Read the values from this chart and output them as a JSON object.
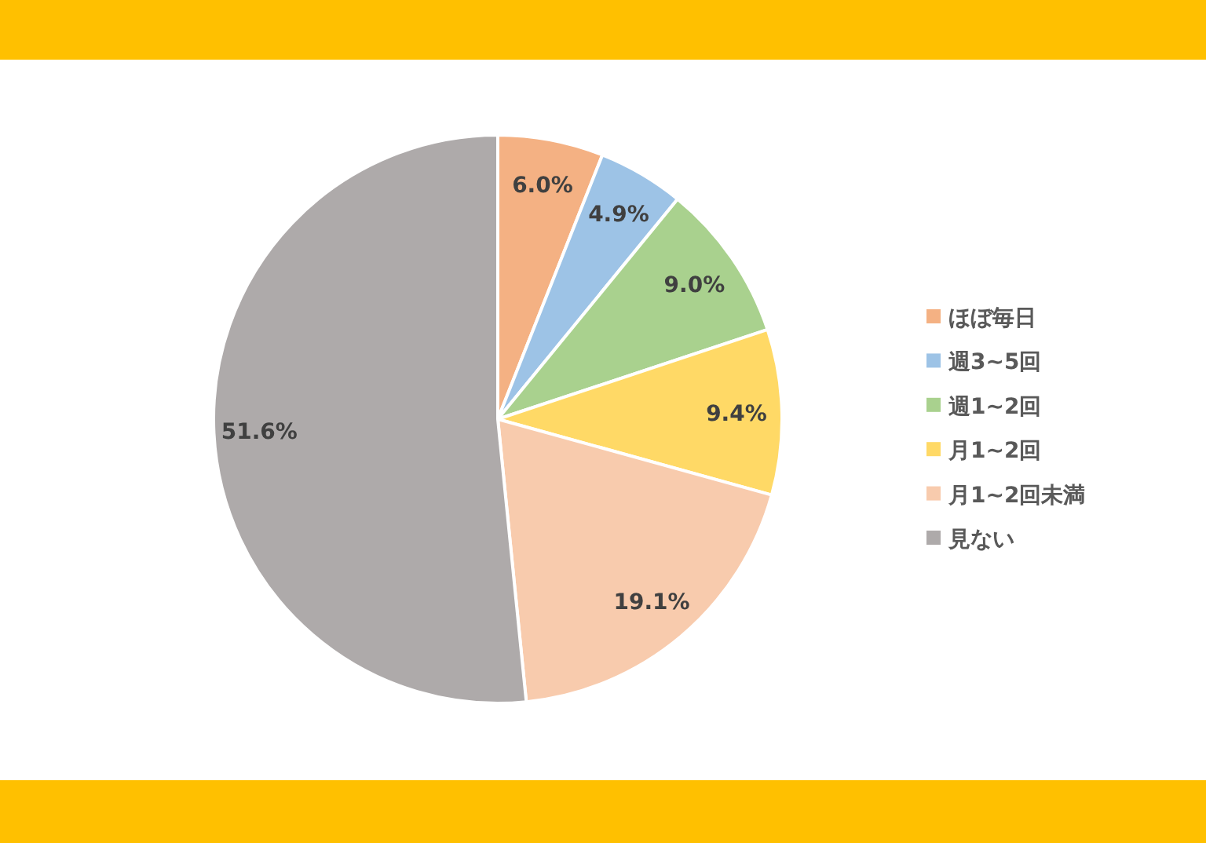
{
  "chart_data": {
    "type": "pie",
    "categories": [
      "ほぼ毎日",
      "週3~5回",
      "週1~2回",
      "月1~2回",
      "月1~2回未満",
      "見ない"
    ],
    "values": [
      6.0,
      4.9,
      9.0,
      9.4,
      19.1,
      51.6
    ],
    "colors": [
      "#f4b183",
      "#9dc3e6",
      "#a9d18e",
      "#ffd966",
      "#f8cbad",
      "#aeaaaa"
    ],
    "value_labels": [
      "6.0%",
      "4.9%",
      "9.0%",
      "9.4%",
      "19.1%",
      "51.6%"
    ],
    "legend": "right"
  }
}
